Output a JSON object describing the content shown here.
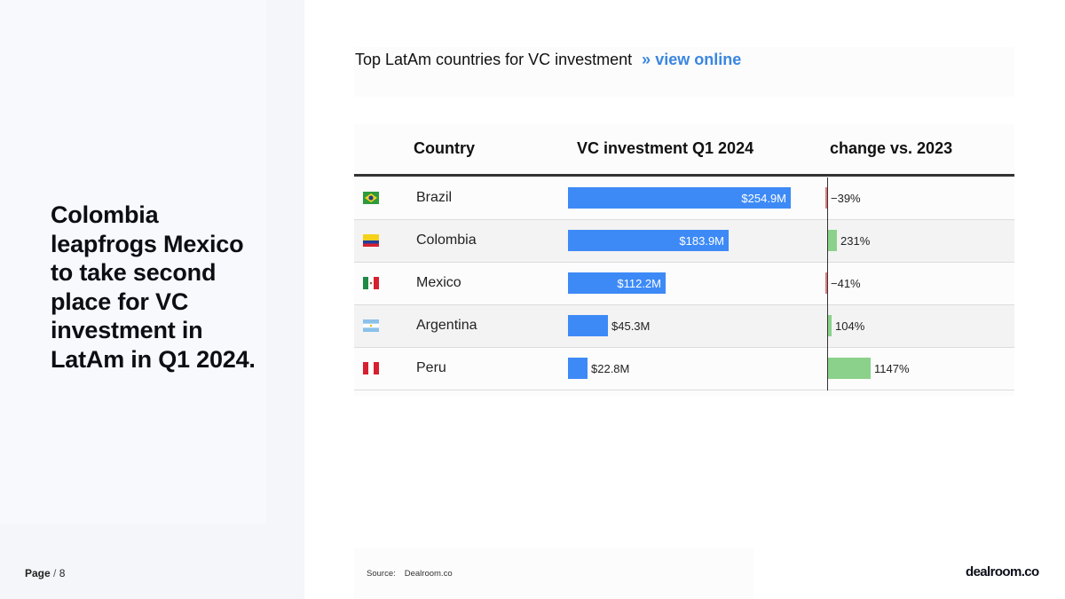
{
  "headline": "Colombia leapfrogs Mexico to take second place for VC investment in LatAm in Q1 2024.",
  "page": {
    "label": "Page",
    "separator": "/",
    "number": "8"
  },
  "chart_data": {
    "type": "table",
    "title": "Top LatAm countries for VC investment",
    "title_link_prefix": "»",
    "title_link": "view online",
    "columns": [
      "Country",
      "VC investment Q1 2024",
      "change vs. 2023"
    ],
    "rows": [
      {
        "country": "Brazil",
        "flag": "brazil-flag-icon",
        "investment_musd": 254.9,
        "investment_label": "$254.9M",
        "change_pct": -39,
        "change_label": "−39%"
      },
      {
        "country": "Colombia",
        "flag": "colombia-flag-icon",
        "investment_musd": 183.9,
        "investment_label": "$183.9M",
        "change_pct": 231,
        "change_label": "231%"
      },
      {
        "country": "Mexico",
        "flag": "mexico-flag-icon",
        "investment_musd": 112.2,
        "investment_label": "$112.2M",
        "change_pct": -41,
        "change_label": "−41%"
      },
      {
        "country": "Argentina",
        "flag": "argentina-flag-icon",
        "investment_musd": 45.3,
        "investment_label": "$45.3M",
        "change_pct": 104,
        "change_label": "104%"
      },
      {
        "country": "Peru",
        "flag": "peru-flag-icon",
        "investment_musd": 22.8,
        "investment_label": "$22.8M",
        "change_pct": 1147,
        "change_label": "1147%"
      }
    ],
    "investment_max": 254.9,
    "change_max": 1147,
    "colors": {
      "investment_bar": "#3d8af7",
      "change_positive": "#8bd18b",
      "change_negative": "#e0787a"
    }
  },
  "source": {
    "label": "Source:",
    "value": "Dealroom.co"
  },
  "logo": "dealroom.co"
}
